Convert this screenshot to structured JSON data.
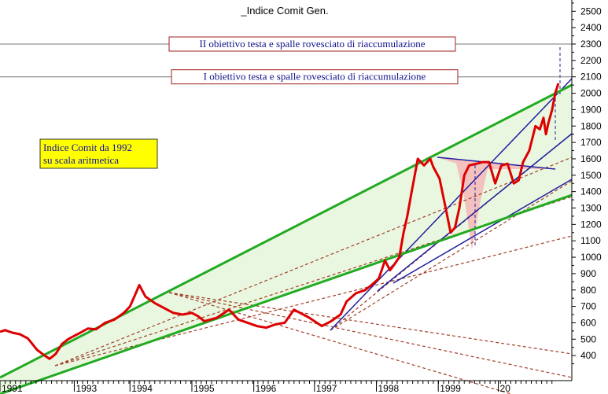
{
  "chart_data": {
    "type": "line",
    "title": "_Indice Comit Gen.",
    "y_axis_position": "right",
    "ylim": [
      300,
      2600
    ],
    "y_ticks": [
      400,
      500,
      600,
      700,
      800,
      900,
      1000,
      1100,
      1200,
      1300,
      1400,
      1500,
      1600,
      1700,
      1800,
      1900,
      2000,
      2100,
      2200,
      2300,
      2400,
      2500
    ],
    "xlim": [
      1991.0,
      2000.05
    ],
    "x_ticks": [
      {
        "label": "1991",
        "value": 1991.0
      },
      {
        "label": "1993",
        "value": 1992.2
      },
      {
        "label": "1994",
        "value": 1993.1
      },
      {
        "label": "1995",
        "value": 1994.1
      },
      {
        "label": "1996",
        "value": 1995.1
      },
      {
        "label": "1997",
        "value": 1996.08
      },
      {
        "label": "1998",
        "value": 1997.08
      },
      {
        "label": "1999",
        "value": 1998.08
      },
      {
        "label": "20",
        "value": 1999.05
      }
    ],
    "grid": false,
    "note": {
      "lines": [
        "Indice Comit da 1992",
        "su scala aritmetica"
      ],
      "background": "#ffff00"
    },
    "target_lines": [
      {
        "label": "II obiettivo testa e spalle rovesciato di riaccumulazione",
        "y": 2300
      },
      {
        "label": "I obiettivo testa e spalle rovesciato di riaccumulazione",
        "y": 2100
      }
    ],
    "series": [
      {
        "color": "#dd0000",
        "x": [
          1991.0,
          1991.08,
          1991.2,
          1991.32,
          1991.45,
          1991.6,
          1991.72,
          1991.8,
          1991.9,
          1992.0,
          1992.1,
          1992.2,
          1992.3,
          1992.42,
          1992.55,
          1992.7,
          1992.85,
          1993.0,
          1993.1,
          1993.17,
          1993.25,
          1993.35,
          1993.5,
          1993.65,
          1993.8,
          1993.95,
          1994.1,
          1994.2,
          1994.3,
          1994.5,
          1994.7,
          1994.85,
          1995.0,
          1995.15,
          1995.3,
          1995.45,
          1995.6,
          1995.75,
          1995.9,
          1996.0,
          1996.2,
          1996.35,
          1996.5,
          1996.6,
          1996.75,
          1996.9,
          1997.0,
          1997.12,
          1997.22,
          1997.3,
          1997.36,
          1997.45,
          1997.52,
          1997.58,
          1997.65,
          1997.75,
          1997.85,
          1997.95,
          1998.0,
          1998.1,
          1998.2,
          1998.28,
          1998.35,
          1998.42,
          1998.5,
          1998.58,
          1998.7,
          1998.8,
          1998.9,
          1999.0,
          1999.1,
          1999.2,
          1999.3,
          1999.38,
          1999.45,
          1999.55,
          1999.65,
          1999.72,
          1999.78,
          1999.82,
          1999.86,
          1999.92,
          1999.97,
          2000.02
        ],
        "values": [
          545,
          555,
          540,
          530,
          505,
          435,
          400,
          380,
          410,
          470,
          500,
          520,
          540,
          565,
          560,
          600,
          620,
          660,
          700,
          760,
          830,
          760,
          720,
          690,
          660,
          650,
          660,
          640,
          610,
          630,
          680,
          620,
          600,
          580,
          570,
          590,
          600,
          680,
          650,
          630,
          580,
          610,
          650,
          730,
          780,
          800,
          830,
          870,
          980,
          920,
          950,
          1000,
          1150,
          1250,
          1400,
          1600,
          1560,
          1600,
          1550,
          1480,
          1300,
          1150,
          1180,
          1300,
          1500,
          1560,
          1570,
          1580,
          1580,
          1450,
          1560,
          1570,
          1450,
          1470,
          1580,
          1650,
          1800,
          1780,
          1850,
          1750,
          1820,
          1900,
          2000,
          2060
        ]
      }
    ]
  }
}
